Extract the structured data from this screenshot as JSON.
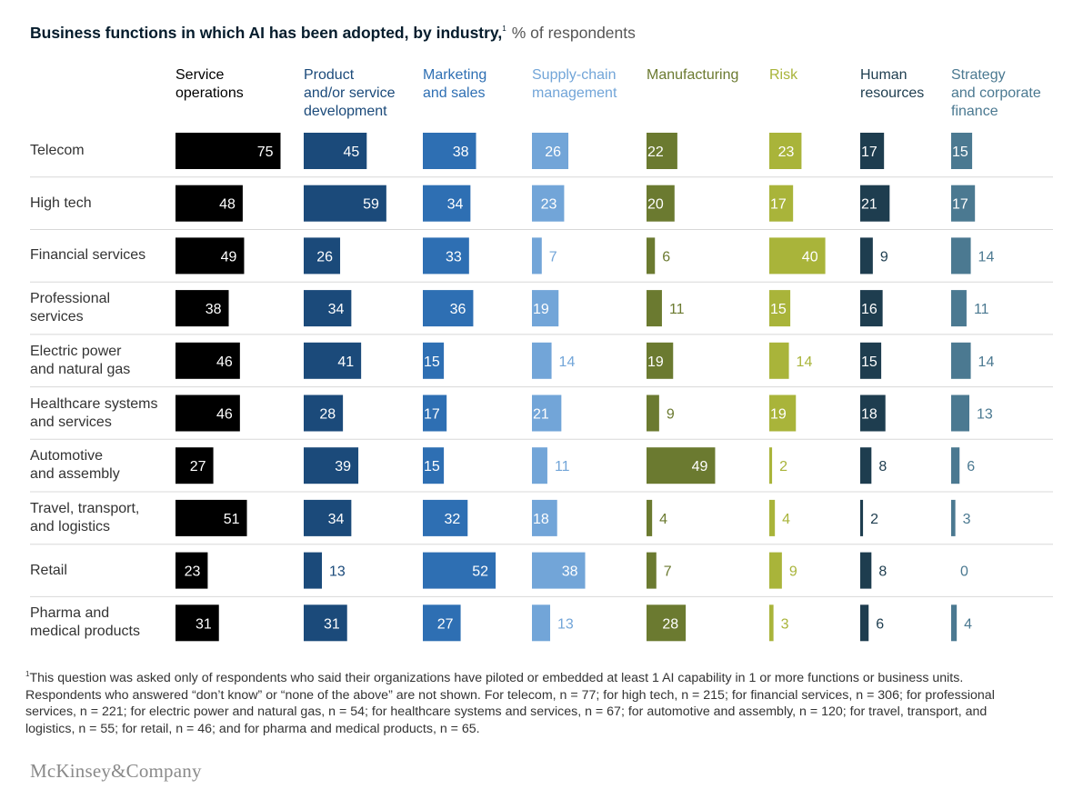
{
  "title": {
    "bold": "Business functions in which AI has been adopted, by industry,",
    "footnote_mark": "1",
    "light": "% of respondents"
  },
  "chart_data": {
    "type": "bar",
    "title": "Business functions in which AI has been adopted, by industry",
    "subtitle": "% of respondents",
    "grid": false,
    "columns": [
      {
        "label": "Service operations",
        "lines": [
          "Service",
          "operations"
        ],
        "color": "#000000",
        "label_color": "#000000"
      },
      {
        "label": "Product and/or service development",
        "lines": [
          "Product",
          "and/or service",
          "development"
        ],
        "color": "#1b4a7a",
        "label_color": "#1b4a7a"
      },
      {
        "label": "Marketing and sales",
        "lines": [
          "Marketing",
          "and sales"
        ],
        "color": "#2e6fb3",
        "label_color": "#2e6fb3"
      },
      {
        "label": "Supply-chain management",
        "lines": [
          "Supply-chain",
          "management"
        ],
        "color": "#72a5d8",
        "label_color": "#72a5d8"
      },
      {
        "label": "Manufacturing",
        "lines": [
          "Manufacturing"
        ],
        "color": "#6b7a30",
        "label_color": "#6b7a30"
      },
      {
        "label": "Risk",
        "lines": [
          "Risk"
        ],
        "color": "#a9b43a",
        "label_color": "#a9b43a"
      },
      {
        "label": "Human resources",
        "lines": [
          "Human",
          "resources"
        ],
        "color": "#1e3d4f",
        "label_color": "#1e3d4f"
      },
      {
        "label": "Strategy and corporate finance",
        "lines": [
          "Strategy",
          "and corporate",
          "finance"
        ],
        "color": "#4b7991",
        "label_color": "#4b7991"
      }
    ],
    "rows": [
      {
        "label": "Telecom",
        "lines": [
          "Telecom"
        ],
        "values": [
          75,
          45,
          38,
          26,
          22,
          23,
          17,
          15
        ]
      },
      {
        "label": "High tech",
        "lines": [
          "High tech"
        ],
        "values": [
          48,
          59,
          34,
          23,
          20,
          17,
          21,
          17
        ]
      },
      {
        "label": "Financial services",
        "lines": [
          "Financial services"
        ],
        "values": [
          49,
          26,
          33,
          7,
          6,
          40,
          9,
          14
        ]
      },
      {
        "label": "Professional services",
        "lines": [
          "Professional",
          "services"
        ],
        "values": [
          38,
          34,
          36,
          19,
          11,
          15,
          16,
          11
        ]
      },
      {
        "label": "Electric power and natural gas",
        "lines": [
          "Electric power",
          "and natural gas"
        ],
        "values": [
          46,
          41,
          15,
          14,
          19,
          14,
          15,
          14
        ]
      },
      {
        "label": "Healthcare systems and services",
        "lines": [
          "Healthcare systems",
          "and services"
        ],
        "values": [
          46,
          28,
          17,
          21,
          9,
          19,
          18,
          13
        ]
      },
      {
        "label": "Automotive and assembly",
        "lines": [
          "Automotive",
          "and assembly"
        ],
        "values": [
          27,
          39,
          15,
          11,
          49,
          2,
          8,
          6
        ]
      },
      {
        "label": "Travel, transport, and logistics",
        "lines": [
          "Travel, transport,",
          "and logistics"
        ],
        "values": [
          51,
          34,
          32,
          18,
          4,
          4,
          2,
          3
        ]
      },
      {
        "label": "Retail",
        "lines": [
          "Retail"
        ],
        "values": [
          23,
          13,
          52,
          38,
          7,
          9,
          8,
          0
        ]
      },
      {
        "label": "Pharma and medical products",
        "lines": [
          "Pharma and",
          "medical products"
        ],
        "values": [
          31,
          31,
          27,
          13,
          28,
          3,
          6,
          4
        ]
      }
    ]
  },
  "footnote": {
    "mark": "1",
    "text": "This question was asked only of respondents who said their organizations have piloted or embedded at least 1 AI capability in 1 or more functions or business units. Respondents who answered “don’t know” or “none of the above” are not shown. For telecom, n = 77; for high tech, n = 215; for financial services, n = 306; for professional services, n = 221; for electric power and natural gas, n = 54; for healthcare systems and services, n = 67; for automotive and assembly, n = 120; for travel, transport, and logistics, n = 55; for retail, n = 46; and for pharma and medical products, n = 65."
  },
  "logo": "McKinsey&Company"
}
